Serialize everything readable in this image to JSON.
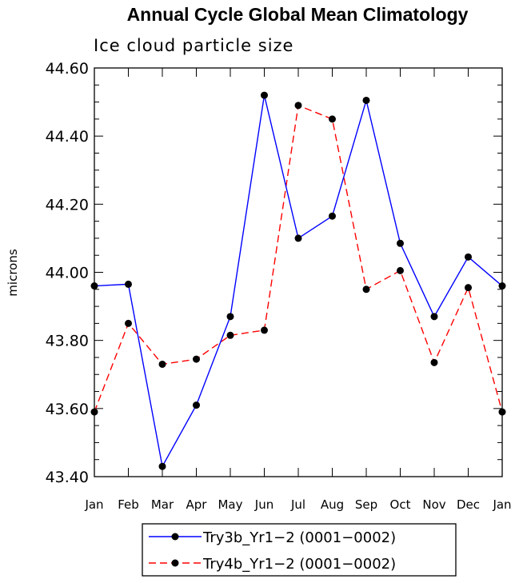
{
  "chart_data": {
    "type": "line",
    "title": "Annual Cycle Global Mean Climatology",
    "subtitle": "Ice cloud particle size",
    "ylabel": "microns",
    "xlabel": "",
    "categories": [
      "Jan",
      "Feb",
      "Mar",
      "Apr",
      "May",
      "Jun",
      "Jul",
      "Aug",
      "Sep",
      "Oct",
      "Nov",
      "Dec",
      "Jan"
    ],
    "ylim": [
      43.4,
      44.6
    ],
    "yticks": [
      "43.40",
      "43.60",
      "43.80",
      "44.00",
      "44.20",
      "44.40",
      "44.60"
    ],
    "legend_position": "bottom-center",
    "series": [
      {
        "name": "Try3b_Yr1−2 (0001−0002)",
        "color": "#0000ff",
        "style": "solid",
        "marker": "filled-circle",
        "values": [
          43.96,
          43.965,
          43.43,
          43.61,
          43.87,
          44.52,
          44.1,
          44.165,
          44.505,
          44.085,
          43.87,
          44.045,
          43.96
        ]
      },
      {
        "name": "Try4b_Yr1−2 (0001−0002)",
        "color": "#ff0000",
        "style": "dashed",
        "marker": "filled-circle",
        "values": [
          43.59,
          43.85,
          43.73,
          43.745,
          43.815,
          43.83,
          44.49,
          44.45,
          43.95,
          44.005,
          43.735,
          43.955,
          43.59
        ]
      }
    ]
  }
}
